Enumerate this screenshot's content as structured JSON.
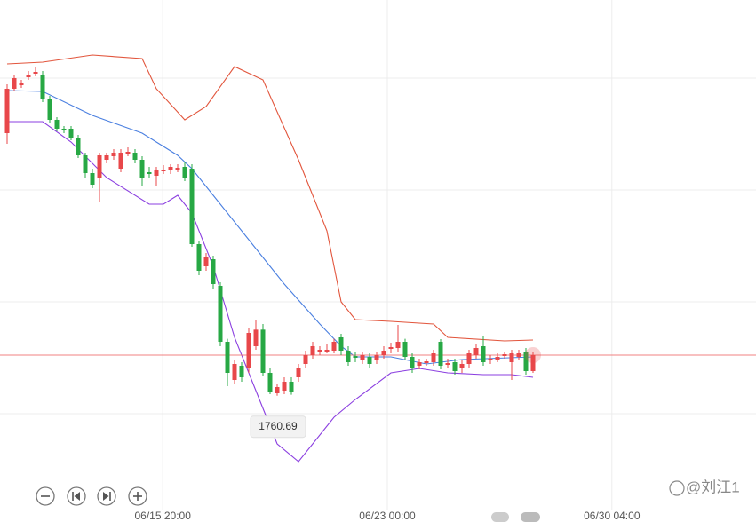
{
  "chart_data": {
    "type": "candlestick",
    "open": [
      1849.4,
      1864.4,
      1865.6,
      1868.3,
      1869.5,
      1868.9,
      1860.8,
      1853.9,
      1850.9,
      1850.9,
      1847.9,
      1841.9,
      1835.9,
      1834.4,
      1840.4,
      1841.6,
      1837.4,
      1842.5,
      1842.8,
      1840.4,
      1836.2,
      1835.0,
      1836.5,
      1836.8,
      1837.1,
      1838.0,
      1837.4,
      1811.9,
      1804.4,
      1806.8,
      1797.8,
      1778.9,
      1766.0,
      1770.8,
      1769.9,
      1777.4,
      1783.0,
      1768.4,
      1761.5,
      1762.4,
      1765.4,
      1766.9,
      1771.4,
      1774.4,
      1775.6,
      1775.6,
      1775.9,
      1780.4,
      1775.9,
      1774.1,
      1772.9,
      1773.8,
      1772.9,
      1774.4,
      1776.5,
      1776.8,
      1778.9,
      1773.8,
      1770.8,
      1771.7,
      1772.0,
      1778.9,
      1771.1,
      1772.0,
      1769.9,
      1771.4,
      1774.4,
      1777.4,
      1772.6,
      1772.9,
      1774.1,
      1772.0,
      1773.8,
      1775.6,
      1769.0
    ],
    "high": [
      1865.9,
      1868.9,
      1867.4,
      1870.4,
      1871.6,
      1870.4,
      1862.0,
      1854.8,
      1851.8,
      1851.8,
      1848.8,
      1842.8,
      1837.4,
      1842.8,
      1842.8,
      1844.0,
      1844.0,
      1844.6,
      1844.0,
      1841.6,
      1838.0,
      1838.0,
      1838.6,
      1838.9,
      1838.9,
      1839.8,
      1838.9,
      1812.8,
      1808.9,
      1808.0,
      1799.0,
      1779.9,
      1772.9,
      1772.0,
      1783.4,
      1786.4,
      1784.9,
      1769.9,
      1764.5,
      1766.9,
      1766.9,
      1771.4,
      1775.9,
      1778.9,
      1777.4,
      1778.0,
      1779.9,
      1781.6,
      1777.4,
      1775.6,
      1775.6,
      1775.0,
      1775.6,
      1777.4,
      1778.6,
      1784.6,
      1779.9,
      1775.0,
      1773.2,
      1773.2,
      1776.2,
      1779.8,
      1773.2,
      1773.2,
      1772.6,
      1776.2,
      1778.0,
      1781.0,
      1774.4,
      1775.0,
      1775.6,
      1776.2,
      1776.2,
      1776.8,
      1775.6
    ],
    "low": [
      1845.8,
      1863.5,
      1864.7,
      1867.4,
      1868.6,
      1859.9,
      1853.0,
      1850.0,
      1849.4,
      1847.0,
      1841.0,
      1834.4,
      1830.8,
      1826.0,
      1839.2,
      1840.4,
      1836.2,
      1841.6,
      1839.2,
      1831.4,
      1834.4,
      1831.4,
      1835.6,
      1835.6,
      1836.2,
      1833.2,
      1811.0,
      1801.4,
      1802.9,
      1796.9,
      1777.4,
      1763.9,
      1764.8,
      1765.4,
      1768.4,
      1776.2,
      1767.2,
      1761.2,
      1760.69,
      1761.2,
      1761.0,
      1765.4,
      1770.2,
      1773.2,
      1774.4,
      1775.0,
      1775.0,
      1774.4,
      1770.8,
      1772.0,
      1771.4,
      1770.2,
      1771.4,
      1773.2,
      1775.0,
      1775.6,
      1772.6,
      1768.4,
      1769.6,
      1770.8,
      1770.8,
      1769.6,
      1770.2,
      1767.8,
      1768.4,
      1770.2,
      1773.2,
      1770.8,
      1771.4,
      1772.0,
      1773.2,
      1766.0,
      1772.6,
      1767.8,
      1768.4
    ],
    "close": [
      1864.4,
      1868.0,
      1866.2,
      1868.9,
      1870.1,
      1860.8,
      1853.9,
      1850.9,
      1850.3,
      1847.9,
      1841.9,
      1835.9,
      1832.0,
      1841.9,
      1841.9,
      1842.8,
      1842.8,
      1843.1,
      1840.4,
      1834.4,
      1835.6,
      1836.8,
      1837.1,
      1838.0,
      1837.7,
      1834.4,
      1811.9,
      1802.9,
      1807.4,
      1798.4,
      1778.9,
      1768.4,
      1771.4,
      1766.9,
      1781.9,
      1783.0,
      1768.4,
      1761.8,
      1763.6,
      1765.4,
      1762.0,
      1769.9,
      1774.4,
      1777.4,
      1776.2,
      1776.2,
      1778.9,
      1775.9,
      1772.0,
      1773.5,
      1774.4,
      1771.4,
      1774.4,
      1775.9,
      1777.1,
      1778.9,
      1773.8,
      1769.9,
      1772.0,
      1772.3,
      1775.0,
      1770.8,
      1771.7,
      1769.0,
      1771.4,
      1775.0,
      1776.8,
      1772.0,
      1773.2,
      1773.8,
      1774.7,
      1775.0,
      1775.0,
      1769.0,
      1774.4
    ],
    "up_color": "#e8474a",
    "down_color": "#27a844",
    "bands": [
      {
        "color": "#e2553c",
        "x": [
          0,
          5,
          12,
          19,
          21,
          25,
          28,
          32,
          36,
          41,
          45,
          47,
          49,
          54,
          60,
          62,
          70,
          74
        ],
        "values": [
          1872.8,
          1873.4,
          1875.8,
          1874.6,
          1864.4,
          1853.9,
          1858.4,
          1871.9,
          1867.4,
          1840.4,
          1816.4,
          1792.4,
          1786.4,
          1785.8,
          1784.9,
          1780.4,
          1779.2,
          1779.5
        ]
      },
      {
        "color": "#4a7fe0",
        "x": [
          0,
          5,
          12,
          19,
          24,
          26,
          30,
          34,
          39,
          44,
          47,
          49,
          54,
          59,
          64,
          74
        ],
        "values": [
          1863.8,
          1863.5,
          1855.4,
          1849.4,
          1841.9,
          1837.4,
          1825.4,
          1813.4,
          1798.4,
          1784.9,
          1777.4,
          1773.8,
          1773.8,
          1771.4,
          1772.9,
          1773.8
        ]
      },
      {
        "color": "#8b3fe0",
        "x": [
          0,
          5,
          9,
          14,
          20,
          22,
          24,
          26,
          29,
          32,
          35,
          38,
          41,
          43,
          46,
          49,
          54,
          58,
          62,
          67,
          71,
          74
        ],
        "values": [
          1853.3,
          1853.3,
          1846.4,
          1834.4,
          1825.4,
          1825.4,
          1828.4,
          1822.4,
          1804.4,
          1780.4,
          1762.4,
          1744.4,
          1738.4,
          1744.4,
          1753.4,
          1759.4,
          1768.4,
          1769.9,
          1768.4,
          1767.8,
          1767.8,
          1766.9
        ]
      }
    ],
    "ylim": [
      1726.4,
      1894.4
    ],
    "xlim": [
      -1,
      105.375
    ],
    "xticks": [
      {
        "value": 21.9,
        "label": "06/15 20:00"
      },
      {
        "value": 53.5,
        "label": "06/23 00:00"
      },
      {
        "value": 85.1,
        "label": "06/30 04:00"
      }
    ],
    "watermark": "@刘江1"
  }
}
